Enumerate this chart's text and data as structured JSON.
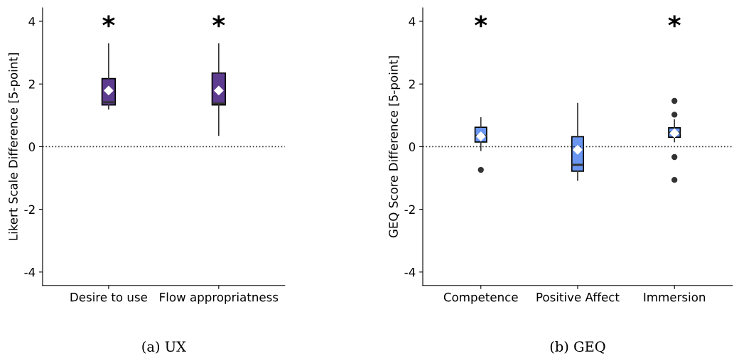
{
  "chart_data": [
    {
      "type": "box",
      "ylabel": "Likert Scale Difference [5-point]",
      "categories": [
        "Desire to use",
        "Flow appropriatness"
      ],
      "series": [
        {
          "color": "#5e3c8f",
          "boxes": [
            {
              "low": 1.2,
              "q1": 1.33,
              "median": 1.42,
              "q3": 2.17,
              "high": 3.28,
              "mean": 1.79
            },
            {
              "low": 0.36,
              "q1": 1.33,
              "median": 1.38,
              "q3": 2.35,
              "high": 3.28,
              "mean": 1.79
            }
          ],
          "value_labels": [
            "*",
            "*"
          ]
        }
      ],
      "ylim": [
        -4.43,
        4.43
      ],
      "yticks": [
        -4,
        -2,
        0,
        2,
        4
      ],
      "grid": false,
      "legend": false,
      "ref_lines": [
        {
          "axis": "y",
          "value": 0,
          "line_style": "dotted",
          "color": "#333333"
        }
      ],
      "annotations": [
        "(a) UX"
      ]
    },
    {
      "type": "box",
      "ylabel": "GEQ Score Difference [5-point]",
      "categories": [
        "Competence",
        "Positive Affect",
        "Immersion"
      ],
      "series": [
        {
          "color": "#6a96f2",
          "boxes": [
            {
              "low": -0.12,
              "q1": 0.15,
              "median": 0.35,
              "q3": 0.62,
              "high": 0.92,
              "mean": 0.33,
              "outliers": [
                -0.74
              ]
            },
            {
              "low": -1.07,
              "q1": -0.78,
              "median": -0.58,
              "q3": 0.32,
              "high": 1.38,
              "mean": -0.1
            },
            {
              "low": 0.16,
              "q1": 0.3,
              "median": 0.45,
              "q3": 0.6,
              "high": 0.86,
              "mean": 0.43,
              "outliers": [
                1.46,
                1.02,
                -0.33,
                -1.06
              ]
            }
          ],
          "value_labels": [
            "*",
            null,
            "*"
          ]
        }
      ],
      "ylim": [
        -4.43,
        4.43
      ],
      "yticks": [
        -4,
        -2,
        0,
        2,
        4
      ],
      "grid": false,
      "legend": false,
      "ref_lines": [
        {
          "axis": "y",
          "value": 0,
          "line_style": "dotted",
          "color": "#333333"
        }
      ],
      "annotations": [
        "(b) GEQ"
      ]
    }
  ]
}
